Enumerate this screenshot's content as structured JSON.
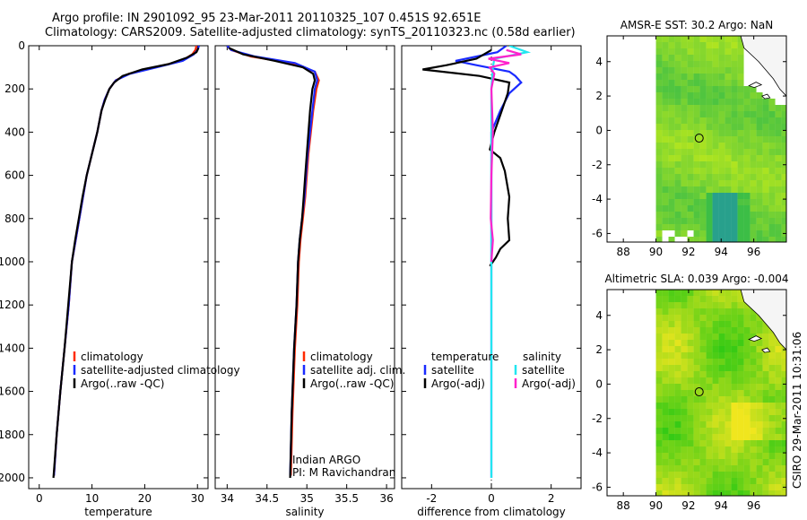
{
  "header": {
    "line1": "Argo profile: IN 2901092_95 23-Mar-2011 20110325_107 0.451S 92.651E",
    "line2": "Climatology: CARS2009. Satellite-adjusted climatology: synTS_20110323.nc (0.58d earlier)"
  },
  "side_label": "CSIRO 29-Mar-2011 10:31:06",
  "colors": {
    "climatology": "#ff2a00",
    "satellite": "#1a2bff",
    "argo": "#000000",
    "satellite_salinity": "#22e6f0",
    "argo_salinity": "#ff22cc"
  },
  "chart_data": [
    {
      "type": "line",
      "id": "temperature_profile",
      "xlabel": "temperature",
      "xlim": [
        -2,
        32
      ],
      "xticks": [
        0,
        10,
        20,
        30
      ],
      "ylim": [
        2050,
        0
      ],
      "yticks": [
        0,
        200,
        400,
        600,
        800,
        1000,
        1200,
        1400,
        1600,
        1800,
        2000
      ],
      "legend": [
        "climatology",
        "satellite-adjusted climatology",
        "Argo(..raw -QC)"
      ],
      "legend_position": "lower-right",
      "series": [
        {
          "name": "climatology",
          "color": "climatology",
          "x": [
            29.8,
            29.6,
            29.0,
            27.0,
            22.0,
            17.0,
            14.5,
            13.3,
            12.4,
            11.8,
            11.0,
            10.0,
            9.0,
            8.3,
            7.6,
            6.9,
            6.2,
            5.6,
            4.8,
            4.0,
            3.3,
            2.8
          ],
          "y": [
            0,
            20,
            40,
            70,
            100,
            130,
            160,
            200,
            250,
            300,
            400,
            500,
            600,
            700,
            800,
            900,
            1000,
            1200,
            1400,
            1600,
            1800,
            1990
          ]
        },
        {
          "name": "satellite-adjusted climatology",
          "color": "satellite",
          "x": [
            30.3,
            30.0,
            29.3,
            27.2,
            22.3,
            17.2,
            14.5,
            13.3,
            12.4,
            11.8,
            11.0,
            10.0,
            9.0,
            8.3,
            7.6,
            6.9,
            6.2,
            5.6,
            4.8,
            4.0,
            3.3,
            2.8
          ],
          "y": [
            0,
            20,
            40,
            70,
            100,
            130,
            160,
            200,
            250,
            300,
            400,
            500,
            600,
            700,
            800,
            900,
            1000,
            1200,
            1400,
            1600,
            1800,
            1990
          ]
        },
        {
          "name": "Argo(..raw -QC)",
          "color": "argo",
          "x": [
            30.2,
            29.8,
            28.0,
            24.5,
            19.5,
            15.8,
            14.2,
            13.3,
            12.5,
            11.8,
            11.0,
            10.0,
            9.0,
            8.2,
            7.5,
            6.8,
            6.2,
            5.5,
            4.8,
            4.0,
            3.3,
            2.7
          ],
          "y": [
            10,
            30,
            55,
            85,
            110,
            140,
            170,
            200,
            250,
            300,
            400,
            500,
            600,
            700,
            800,
            900,
            1000,
            1200,
            1400,
            1600,
            1800,
            2000
          ]
        }
      ]
    },
    {
      "type": "line",
      "id": "salinity_profile",
      "xlabel": "salinity",
      "xlim": [
        33.85,
        36.1
      ],
      "xticks": [
        34,
        34.5,
        35,
        35.5,
        36
      ],
      "ylim": [
        2050,
        0
      ],
      "legend": [
        "climatology",
        "satellite adj. clim.",
        "Argo(..raw -QC)"
      ],
      "legend_position": "lower-right",
      "annotations": [
        "Indian ARGO",
        "PI: M Ravichandran"
      ],
      "series": [
        {
          "name": "climatology",
          "color": "climatology",
          "x": [
            34.0,
            34.05,
            34.3,
            34.8,
            35.1,
            35.15,
            35.12,
            35.08,
            35.05,
            35.02,
            35.0,
            34.98,
            34.95,
            34.92,
            34.9,
            34.88,
            34.85,
            34.82,
            34.8
          ],
          "y": [
            0,
            20,
            50,
            80,
            120,
            160,
            200,
            300,
            400,
            500,
            600,
            700,
            800,
            900,
            1000,
            1200,
            1400,
            1700,
            1990
          ]
        },
        {
          "name": "satellite adj. clim.",
          "color": "satellite",
          "x": [
            34.0,
            34.05,
            34.35,
            34.85,
            35.1,
            35.13,
            35.1,
            35.07,
            35.04,
            35.01,
            34.99,
            34.97,
            34.94,
            34.91,
            34.89,
            34.87,
            34.84,
            34.81,
            34.79
          ],
          "y": [
            0,
            20,
            50,
            80,
            120,
            160,
            200,
            300,
            400,
            500,
            600,
            700,
            800,
            900,
            1000,
            1200,
            1400,
            1700,
            1990
          ]
        },
        {
          "name": "Argo(..raw -QC)",
          "color": "argo",
          "x": [
            34.02,
            34.2,
            34.6,
            34.95,
            35.08,
            35.1,
            35.07,
            35.04,
            35.02,
            35.0,
            34.98,
            34.96,
            34.94,
            34.91,
            34.89,
            34.87,
            34.84,
            34.81,
            34.79
          ],
          "y": [
            10,
            40,
            70,
            100,
            130,
            160,
            200,
            300,
            400,
            500,
            600,
            700,
            800,
            900,
            1000,
            1200,
            1400,
            1700,
            2000
          ]
        }
      ]
    },
    {
      "type": "line",
      "id": "difference_profile",
      "xlabel": "difference from climatology",
      "xlim": [
        -3,
        3
      ],
      "xticks": [
        -2,
        0,
        2
      ],
      "ylim": [
        2050,
        0
      ],
      "legend": [
        "temperature",
        "satellite",
        "Argo(-adj)",
        "salinity",
        "satellite",
        "Argo(-adj)"
      ],
      "legend_position": "lower-center",
      "series": [
        {
          "name": "satellite",
          "group": "temperature",
          "color": "satellite",
          "x": [
            0.5,
            0.2,
            -1.2,
            -0.5,
            0.6,
            0.8,
            1.0,
            0.6,
            0.3,
            0.0,
            0.0,
            0.0,
            0.0,
            0.0
          ],
          "y": [
            0,
            30,
            70,
            90,
            120,
            140,
            170,
            220,
            300,
            400,
            600,
            1000,
            1600,
            2000
          ]
        },
        {
          "name": "Argo(-adj)",
          "group": "temperature",
          "color": "argo",
          "x": [
            0.0,
            -0.5,
            -1.5,
            -2.3,
            -0.4,
            0.6,
            0.55,
            0.35,
            0.1,
            -0.05,
            0.3,
            0.45,
            0.6,
            0.55,
            0.6,
            0.3,
            0.15,
            0.05,
            -0.05
          ],
          "y": [
            20,
            60,
            90,
            110,
            140,
            170,
            220,
            300,
            400,
            480,
            520,
            580,
            700,
            800,
            900,
            940,
            980,
            1000,
            1020
          ]
        },
        {
          "name": "satellite",
          "group": "salinity",
          "color": "satellite_salinity",
          "x": [
            0.6,
            1.2,
            0.1,
            0.05,
            0.0,
            0.0,
            0.0,
            0.0,
            0.0
          ],
          "y": [
            0,
            30,
            60,
            100,
            200,
            400,
            800,
            1400,
            2000
          ]
        },
        {
          "name": "Argo(-adj)",
          "group": "salinity",
          "color": "argo_salinity",
          "x": [
            0.5,
            1.0,
            -0.1,
            0.6,
            -0.05,
            0.1,
            0.0,
            0.05,
            0.0,
            -0.02,
            0.05,
            0.0
          ],
          "y": [
            20,
            40,
            60,
            80,
            100,
            130,
            200,
            400,
            600,
            800,
            900,
            1000
          ]
        }
      ]
    },
    {
      "type": "heatmap",
      "id": "sst_map",
      "title": "AMSR-E SST: 30.2 Argo: NaN",
      "xlim": [
        87,
        98
      ],
      "ylim": [
        -6.5,
        5.5
      ],
      "xticks": [
        88,
        90,
        92,
        94,
        96
      ],
      "yticks": [
        -6,
        -4,
        -2,
        0,
        2,
        4
      ],
      "float_position": [
        92.651,
        -0.451
      ]
    },
    {
      "type": "heatmap",
      "id": "sla_map",
      "title": "Altimetric SLA: 0.039 Argo: -0.004",
      "xlim": [
        87,
        98
      ],
      "ylim": [
        -6.5,
        5.5
      ],
      "xticks": [
        88,
        90,
        92,
        94,
        96
      ],
      "yticks": [
        -6,
        -4,
        -2,
        0,
        2,
        4
      ],
      "float_position": [
        92.651,
        -0.451
      ]
    }
  ]
}
